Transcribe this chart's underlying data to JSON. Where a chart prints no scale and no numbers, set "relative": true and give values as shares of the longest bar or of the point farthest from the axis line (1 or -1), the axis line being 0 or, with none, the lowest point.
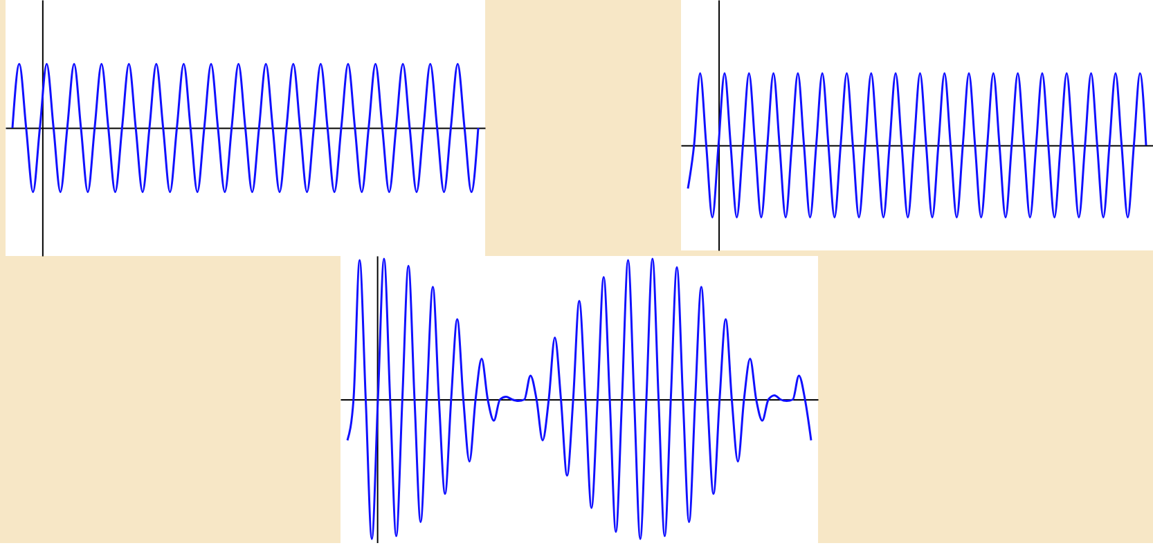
{
  "chart_data": [
    {
      "type": "line",
      "relative": true,
      "categories": [
        null,
        null,
        null,
        null,
        null,
        null,
        null,
        null,
        null,
        null,
        null,
        null,
        null,
        null,
        null,
        null,
        null,
        null,
        null,
        null,
        null,
        null,
        null,
        null,
        null,
        null,
        null,
        null,
        null,
        null,
        null,
        null,
        null,
        null,
        null,
        null,
        null,
        null,
        null,
        null,
        null,
        null,
        null,
        null,
        null,
        null,
        null,
        null,
        null,
        null,
        null,
        null,
        null,
        null,
        null,
        null,
        null,
        null,
        null,
        null,
        null,
        null,
        null,
        null,
        null,
        null,
        null,
        null,
        null
      ],
      "series": [
        {
          "color": "#1010ff",
          "values": [
            0,
            1,
            0,
            -1,
            0,
            1,
            0,
            -1,
            0,
            1,
            0,
            -1,
            0,
            1,
            0,
            -1,
            0,
            1,
            0,
            -1,
            0,
            1,
            0,
            -1,
            0,
            1,
            0,
            -1,
            0,
            1,
            0,
            -1,
            0,
            1,
            0,
            -1,
            0,
            1,
            0,
            -1,
            0,
            1,
            0,
            -1,
            0,
            1,
            0,
            -1,
            0,
            1,
            0,
            -1,
            0,
            1,
            0,
            -1,
            0,
            1,
            0,
            -1,
            0,
            1,
            0,
            -1,
            0,
            1,
            0,
            -1,
            0
          ]
        }
      ]
    },
    {
      "type": "line",
      "relative": true,
      "categories": [
        null,
        null,
        null,
        null,
        null,
        null,
        null,
        null,
        null,
        null,
        null,
        null,
        null,
        null,
        null,
        null,
        null,
        null,
        null,
        null,
        null,
        null,
        null,
        null,
        null,
        null,
        null,
        null,
        null,
        null,
        null,
        null,
        null,
        null,
        null,
        null,
        null,
        null,
        null,
        null,
        null,
        null,
        null,
        null,
        null,
        null,
        null,
        null,
        null,
        null,
        null,
        null,
        null,
        null,
        null,
        null,
        null,
        null,
        null,
        null,
        null,
        null,
        null,
        null,
        null,
        null,
        null,
        null,
        null,
        null,
        null,
        null,
        null,
        null,
        null,
        null
      ],
      "series": [
        {
          "color": "#1010ff",
          "values": [
            -0.6,
            0,
            1,
            0,
            -1,
            0,
            1,
            0,
            -1,
            0,
            1,
            0,
            -1,
            0,
            1,
            0,
            -1,
            0,
            1,
            0,
            -1,
            0,
            1,
            0,
            -1,
            0,
            1,
            0,
            -1,
            0,
            1,
            0,
            -1,
            0,
            1,
            0,
            -1,
            0,
            1,
            0,
            -1,
            0,
            1,
            0,
            -1,
            0,
            1,
            0,
            -1,
            0,
            1,
            0,
            -1,
            0,
            1,
            0,
            -1,
            0,
            1,
            0,
            -1,
            0,
            1,
            0,
            -1,
            0,
            1,
            0,
            -1,
            0,
            1,
            0,
            -1,
            0,
            1,
            0
          ]
        }
      ]
    },
    {
      "type": "line",
      "relative": true,
      "categories": [
        null,
        null,
        null,
        null,
        null,
        null,
        null,
        null,
        null,
        null,
        null,
        null,
        null,
        null,
        null,
        null,
        null,
        null,
        null,
        null,
        null,
        null,
        null,
        null,
        null,
        null,
        null,
        null,
        null,
        null,
        null,
        null,
        null,
        null,
        null,
        null,
        null,
        null,
        null,
        null,
        null,
        null,
        null,
        null,
        null,
        null,
        null,
        null,
        null,
        null,
        null,
        null,
        null,
        null,
        null,
        null,
        null,
        null,
        null,
        null,
        null,
        null,
        null,
        null,
        null,
        null,
        null,
        null,
        null,
        null,
        null,
        null,
        null,
        null,
        null,
        null,
        null
      ],
      "series": [
        {
          "color": "#1010ff",
          "values": [
            -0.29,
            0,
            0.99,
            0,
            -0.99,
            0,
            1.0,
            0,
            -0.97,
            0,
            0.95,
            0,
            -0.87,
            0,
            0.8,
            0,
            -0.67,
            0,
            0.57,
            0,
            -0.44,
            0,
            0.29,
            0,
            -0.15,
            0,
            0.02,
            0,
            -0.01,
            0,
            0.17,
            0,
            -0.29,
            0,
            0.44,
            0,
            -0.54,
            0,
            0.7,
            0,
            -0.77,
            0,
            0.87,
            0,
            -0.94,
            0,
            0.99,
            0,
            -0.99,
            0,
            1.0,
            0,
            -0.97,
            0,
            0.94,
            0,
            -0.87,
            0,
            0.8,
            0,
            -0.67,
            0,
            0.57,
            0,
            -0.44,
            0,
            0.29,
            0,
            -0.15,
            0,
            0.03,
            0,
            -0.01,
            0,
            0.17,
            0,
            -0.29
          ]
        }
      ]
    }
  ]
}
